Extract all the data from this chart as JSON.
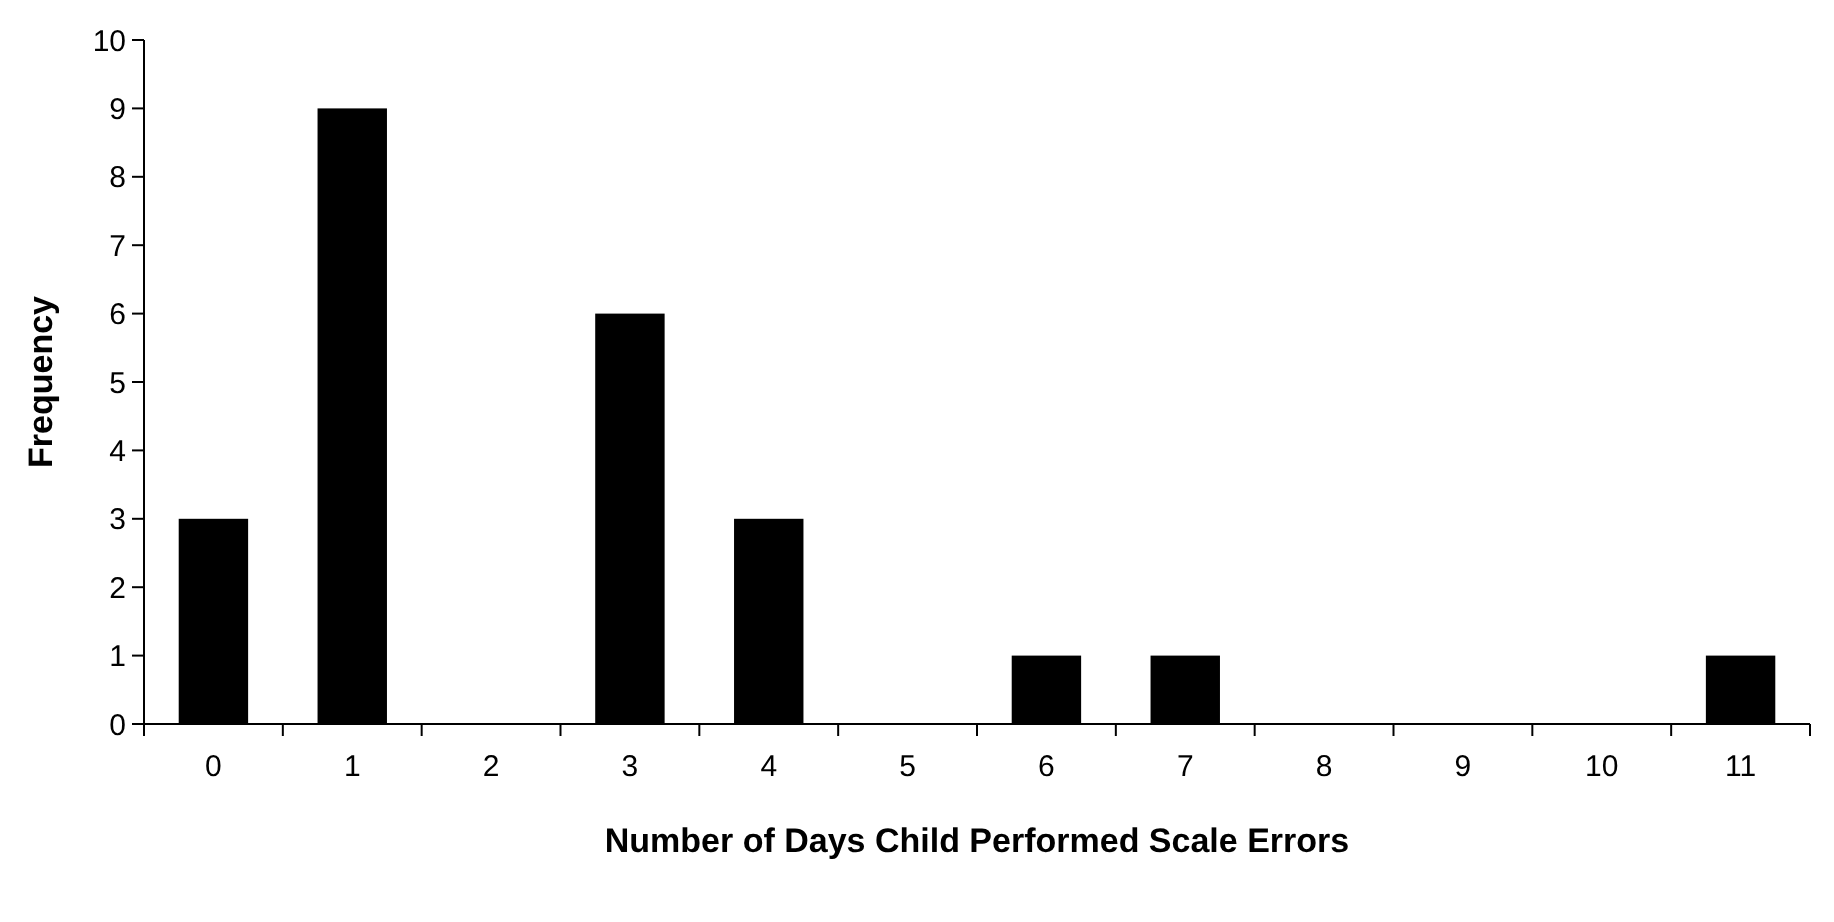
{
  "chart_data": {
    "type": "bar",
    "xlabel": "Number of Days Child Performed Scale Errors",
    "ylabel": "Frequency",
    "categories": [
      "0",
      "1",
      "2",
      "3",
      "4",
      "5",
      "6",
      "7",
      "8",
      "9",
      "10",
      "11"
    ],
    "values": [
      3,
      9,
      0,
      6,
      3,
      0,
      1,
      1,
      0,
      0,
      0,
      1
    ],
    "color": "#000000",
    "ylim": [
      0,
      10
    ],
    "yticks": [
      0,
      1,
      2,
      3,
      4,
      5,
      6,
      7,
      8,
      9,
      10
    ],
    "grid": false
  }
}
